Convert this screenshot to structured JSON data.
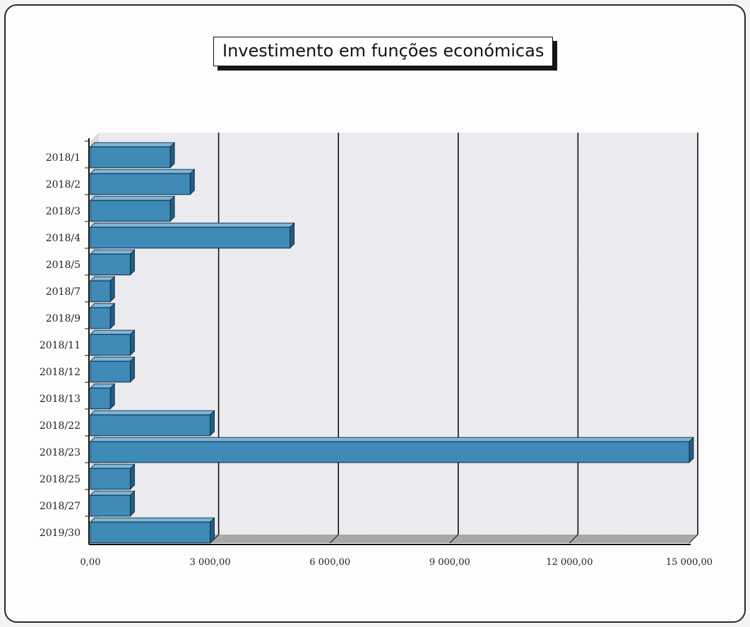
{
  "chart_data": {
    "type": "bar",
    "orientation": "horizontal",
    "title": "Investimento em funções económicas",
    "xlabel": "",
    "ylabel": "",
    "categories": [
      "2018/1",
      "2018/2",
      "2018/3",
      "2018/4",
      "2018/5",
      "2018/7",
      "2018/9",
      "2018/11",
      "2018/12",
      "2018/13",
      "2018/22",
      "2018/23",
      "2018/25",
      "2018/27",
      "2019/30"
    ],
    "values": [
      2000,
      2500,
      2000,
      5000,
      1000,
      500,
      500,
      1000,
      1000,
      500,
      3000,
      15000,
      1000,
      1000,
      3000
    ],
    "xlim": [
      0,
      15000
    ],
    "xticks": [
      0,
      3000,
      6000,
      9000,
      12000,
      15000
    ],
    "xtick_labels": [
      "0,00",
      "3 000,00",
      "6 000,00",
      "9 000,00",
      "12 000,00",
      "15 000,00"
    ],
    "grid": "vertical",
    "legend": "none",
    "colors": {
      "bar_front": "#3f8ab6",
      "bar_top": "#7cb6d8",
      "bar_side": "#1f5e88",
      "plot_bg": "#e9e9ee",
      "gridline": "#111111",
      "floor": "#a8a8a8"
    }
  }
}
